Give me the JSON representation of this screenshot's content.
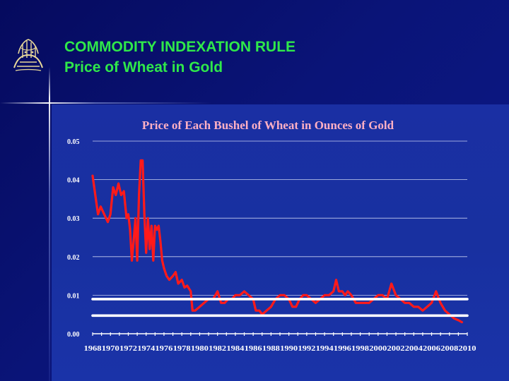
{
  "slide": {
    "title_line1": "COMMODITY INDEXATION RULE",
    "title_line2": "Price of Wheat in Gold",
    "title_color": "#2fe84a"
  },
  "chart_data": {
    "type": "line",
    "title": "Price of Each Bushel of Wheat in Ounces of Gold",
    "xlabel": "",
    "ylabel": "",
    "xlim": [
      1968,
      2010
    ],
    "ylim": [
      0,
      0.05
    ],
    "yticks": [
      "0.00",
      "0.01",
      "0.02",
      "0.03",
      "0.04",
      "0.05"
    ],
    "xticks": [
      "1968",
      "1970",
      "1972",
      "1974",
      "1976",
      "1978",
      "1980",
      "1982",
      "1984",
      "1986",
      "1988",
      "1990",
      "1992",
      "1994",
      "1996",
      "1998",
      "2000",
      "2002",
      "2004",
      "2006",
      "2008",
      "2010"
    ],
    "grid": true,
    "series": [
      {
        "color": "#ff1a1a",
        "points": [
          [
            1968.0,
            0.041
          ],
          [
            1968.3,
            0.036
          ],
          [
            1968.6,
            0.031
          ],
          [
            1968.9,
            0.033
          ],
          [
            1969.3,
            0.031
          ],
          [
            1969.7,
            0.029
          ],
          [
            1970.0,
            0.031
          ],
          [
            1970.3,
            0.038
          ],
          [
            1970.6,
            0.036
          ],
          [
            1970.9,
            0.039
          ],
          [
            1971.2,
            0.036
          ],
          [
            1971.5,
            0.037
          ],
          [
            1971.8,
            0.03
          ],
          [
            1972.0,
            0.031
          ],
          [
            1972.2,
            0.027
          ],
          [
            1972.4,
            0.019
          ],
          [
            1972.6,
            0.024
          ],
          [
            1972.8,
            0.03
          ],
          [
            1973.0,
            0.019
          ],
          [
            1973.2,
            0.036
          ],
          [
            1973.4,
            0.045
          ],
          [
            1973.6,
            0.045
          ],
          [
            1973.8,
            0.031
          ],
          [
            1974.0,
            0.021
          ],
          [
            1974.2,
            0.03
          ],
          [
            1974.4,
            0.022
          ],
          [
            1974.6,
            0.028
          ],
          [
            1974.8,
            0.019
          ],
          [
            1975.0,
            0.028
          ],
          [
            1975.2,
            0.027
          ],
          [
            1975.4,
            0.028
          ],
          [
            1975.6,
            0.024
          ],
          [
            1975.8,
            0.019
          ],
          [
            1976.0,
            0.017
          ],
          [
            1976.3,
            0.015
          ],
          [
            1976.6,
            0.014
          ],
          [
            1977.0,
            0.015
          ],
          [
            1977.3,
            0.016
          ],
          [
            1977.6,
            0.013
          ],
          [
            1978.0,
            0.014
          ],
          [
            1978.3,
            0.012
          ],
          [
            1978.6,
            0.0125
          ],
          [
            1979.0,
            0.011
          ],
          [
            1979.2,
            0.006
          ],
          [
            1979.5,
            0.006
          ],
          [
            1980.0,
            0.007
          ],
          [
            1980.5,
            0.008
          ],
          [
            1981.0,
            0.009
          ],
          [
            1981.5,
            0.009
          ],
          [
            1982.0,
            0.011
          ],
          [
            1982.4,
            0.008
          ],
          [
            1982.8,
            0.008
          ],
          [
            1983.2,
            0.009
          ],
          [
            1983.6,
            0.009
          ],
          [
            1984.0,
            0.01
          ],
          [
            1984.5,
            0.01
          ],
          [
            1985.0,
            0.011
          ],
          [
            1985.5,
            0.01
          ],
          [
            1986.0,
            0.009
          ],
          [
            1986.3,
            0.006
          ],
          [
            1986.7,
            0.006
          ],
          [
            1987.0,
            0.005
          ],
          [
            1987.5,
            0.006
          ],
          [
            1988.0,
            0.007
          ],
          [
            1988.5,
            0.009
          ],
          [
            1989.0,
            0.01
          ],
          [
            1989.5,
            0.01
          ],
          [
            1990.0,
            0.009
          ],
          [
            1990.4,
            0.007
          ],
          [
            1990.8,
            0.007
          ],
          [
            1991.2,
            0.009
          ],
          [
            1991.6,
            0.01
          ],
          [
            1992.0,
            0.01
          ],
          [
            1992.5,
            0.009
          ],
          [
            1993.0,
            0.008
          ],
          [
            1993.5,
            0.009
          ],
          [
            1994.0,
            0.01
          ],
          [
            1994.5,
            0.01
          ],
          [
            1995.0,
            0.011
          ],
          [
            1995.3,
            0.014
          ],
          [
            1995.6,
            0.011
          ],
          [
            1996.0,
            0.011
          ],
          [
            1996.3,
            0.01
          ],
          [
            1996.6,
            0.011
          ],
          [
            1997.0,
            0.01
          ],
          [
            1997.5,
            0.008
          ],
          [
            1998.0,
            0.008
          ],
          [
            1998.5,
            0.008
          ],
          [
            1999.0,
            0.008
          ],
          [
            1999.5,
            0.009
          ],
          [
            2000.0,
            0.01
          ],
          [
            2000.5,
            0.01
          ],
          [
            2001.0,
            0.009
          ],
          [
            2001.5,
            0.013
          ],
          [
            2002.0,
            0.01
          ],
          [
            2002.5,
            0.009
          ],
          [
            2003.0,
            0.008
          ],
          [
            2003.5,
            0.008
          ],
          [
            2004.0,
            0.007
          ],
          [
            2004.5,
            0.007
          ],
          [
            2005.0,
            0.006
          ],
          [
            2005.5,
            0.007
          ],
          [
            2006.0,
            0.008
          ],
          [
            2006.5,
            0.011
          ],
          [
            2007.0,
            0.008
          ],
          [
            2007.5,
            0.006
          ],
          [
            2008.0,
            0.005
          ],
          [
            2008.5,
            0.004
          ],
          [
            2009.0,
            0.0035
          ],
          [
            2009.4,
            0.003
          ]
        ]
      },
      {
        "color": "#ffffff",
        "points": [
          [
            1968,
            0.009
          ],
          [
            2010,
            0.009
          ]
        ]
      },
      {
        "color": "#ffffff",
        "points": [
          [
            1968,
            0.0047
          ],
          [
            2010,
            0.0047
          ]
        ]
      }
    ]
  }
}
